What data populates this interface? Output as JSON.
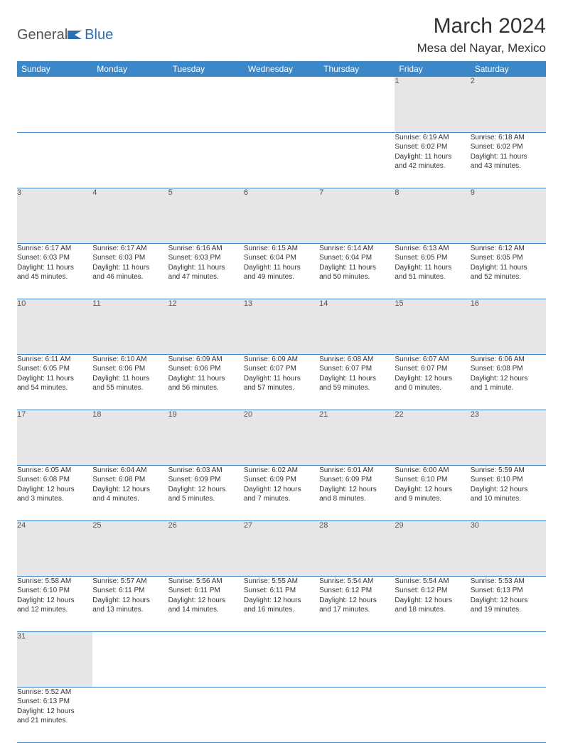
{
  "logo": {
    "text1": "General",
    "text2": "Blue"
  },
  "title": {
    "month": "March 2024",
    "location": "Mesa del Nayar, Mexico"
  },
  "colors": {
    "header_bg": "#3c87c7",
    "header_fg": "#ffffff",
    "daynum_bg": "#e6e6e6",
    "border": "#3c87c7",
    "logo_blue": "#2c6fb0"
  },
  "day_headers": [
    "Sunday",
    "Monday",
    "Tuesday",
    "Wednesday",
    "Thursday",
    "Friday",
    "Saturday"
  ],
  "weeks": [
    [
      {
        "num": "",
        "lines": []
      },
      {
        "num": "",
        "lines": []
      },
      {
        "num": "",
        "lines": []
      },
      {
        "num": "",
        "lines": []
      },
      {
        "num": "",
        "lines": []
      },
      {
        "num": "1",
        "lines": [
          "Sunrise: 6:19 AM",
          "Sunset: 6:02 PM",
          "Daylight: 11 hours",
          "and 42 minutes."
        ]
      },
      {
        "num": "2",
        "lines": [
          "Sunrise: 6:18 AM",
          "Sunset: 6:02 PM",
          "Daylight: 11 hours",
          "and 43 minutes."
        ]
      }
    ],
    [
      {
        "num": "3",
        "lines": [
          "Sunrise: 6:17 AM",
          "Sunset: 6:03 PM",
          "Daylight: 11 hours",
          "and 45 minutes."
        ]
      },
      {
        "num": "4",
        "lines": [
          "Sunrise: 6:17 AM",
          "Sunset: 6:03 PM",
          "Daylight: 11 hours",
          "and 46 minutes."
        ]
      },
      {
        "num": "5",
        "lines": [
          "Sunrise: 6:16 AM",
          "Sunset: 6:03 PM",
          "Daylight: 11 hours",
          "and 47 minutes."
        ]
      },
      {
        "num": "6",
        "lines": [
          "Sunrise: 6:15 AM",
          "Sunset: 6:04 PM",
          "Daylight: 11 hours",
          "and 49 minutes."
        ]
      },
      {
        "num": "7",
        "lines": [
          "Sunrise: 6:14 AM",
          "Sunset: 6:04 PM",
          "Daylight: 11 hours",
          "and 50 minutes."
        ]
      },
      {
        "num": "8",
        "lines": [
          "Sunrise: 6:13 AM",
          "Sunset: 6:05 PM",
          "Daylight: 11 hours",
          "and 51 minutes."
        ]
      },
      {
        "num": "9",
        "lines": [
          "Sunrise: 6:12 AM",
          "Sunset: 6:05 PM",
          "Daylight: 11 hours",
          "and 52 minutes."
        ]
      }
    ],
    [
      {
        "num": "10",
        "lines": [
          "Sunrise: 6:11 AM",
          "Sunset: 6:05 PM",
          "Daylight: 11 hours",
          "and 54 minutes."
        ]
      },
      {
        "num": "11",
        "lines": [
          "Sunrise: 6:10 AM",
          "Sunset: 6:06 PM",
          "Daylight: 11 hours",
          "and 55 minutes."
        ]
      },
      {
        "num": "12",
        "lines": [
          "Sunrise: 6:09 AM",
          "Sunset: 6:06 PM",
          "Daylight: 11 hours",
          "and 56 minutes."
        ]
      },
      {
        "num": "13",
        "lines": [
          "Sunrise: 6:09 AM",
          "Sunset: 6:07 PM",
          "Daylight: 11 hours",
          "and 57 minutes."
        ]
      },
      {
        "num": "14",
        "lines": [
          "Sunrise: 6:08 AM",
          "Sunset: 6:07 PM",
          "Daylight: 11 hours",
          "and 59 minutes."
        ]
      },
      {
        "num": "15",
        "lines": [
          "Sunrise: 6:07 AM",
          "Sunset: 6:07 PM",
          "Daylight: 12 hours",
          "and 0 minutes."
        ]
      },
      {
        "num": "16",
        "lines": [
          "Sunrise: 6:06 AM",
          "Sunset: 6:08 PM",
          "Daylight: 12 hours",
          "and 1 minute."
        ]
      }
    ],
    [
      {
        "num": "17",
        "lines": [
          "Sunrise: 6:05 AM",
          "Sunset: 6:08 PM",
          "Daylight: 12 hours",
          "and 3 minutes."
        ]
      },
      {
        "num": "18",
        "lines": [
          "Sunrise: 6:04 AM",
          "Sunset: 6:08 PM",
          "Daylight: 12 hours",
          "and 4 minutes."
        ]
      },
      {
        "num": "19",
        "lines": [
          "Sunrise: 6:03 AM",
          "Sunset: 6:09 PM",
          "Daylight: 12 hours",
          "and 5 minutes."
        ]
      },
      {
        "num": "20",
        "lines": [
          "Sunrise: 6:02 AM",
          "Sunset: 6:09 PM",
          "Daylight: 12 hours",
          "and 7 minutes."
        ]
      },
      {
        "num": "21",
        "lines": [
          "Sunrise: 6:01 AM",
          "Sunset: 6:09 PM",
          "Daylight: 12 hours",
          "and 8 minutes."
        ]
      },
      {
        "num": "22",
        "lines": [
          "Sunrise: 6:00 AM",
          "Sunset: 6:10 PM",
          "Daylight: 12 hours",
          "and 9 minutes."
        ]
      },
      {
        "num": "23",
        "lines": [
          "Sunrise: 5:59 AM",
          "Sunset: 6:10 PM",
          "Daylight: 12 hours",
          "and 10 minutes."
        ]
      }
    ],
    [
      {
        "num": "24",
        "lines": [
          "Sunrise: 5:58 AM",
          "Sunset: 6:10 PM",
          "Daylight: 12 hours",
          "and 12 minutes."
        ]
      },
      {
        "num": "25",
        "lines": [
          "Sunrise: 5:57 AM",
          "Sunset: 6:11 PM",
          "Daylight: 12 hours",
          "and 13 minutes."
        ]
      },
      {
        "num": "26",
        "lines": [
          "Sunrise: 5:56 AM",
          "Sunset: 6:11 PM",
          "Daylight: 12 hours",
          "and 14 minutes."
        ]
      },
      {
        "num": "27",
        "lines": [
          "Sunrise: 5:55 AM",
          "Sunset: 6:11 PM",
          "Daylight: 12 hours",
          "and 16 minutes."
        ]
      },
      {
        "num": "28",
        "lines": [
          "Sunrise: 5:54 AM",
          "Sunset: 6:12 PM",
          "Daylight: 12 hours",
          "and 17 minutes."
        ]
      },
      {
        "num": "29",
        "lines": [
          "Sunrise: 5:54 AM",
          "Sunset: 6:12 PM",
          "Daylight: 12 hours",
          "and 18 minutes."
        ]
      },
      {
        "num": "30",
        "lines": [
          "Sunrise: 5:53 AM",
          "Sunset: 6:13 PM",
          "Daylight: 12 hours",
          "and 19 minutes."
        ]
      }
    ],
    [
      {
        "num": "31",
        "lines": [
          "Sunrise: 5:52 AM",
          "Sunset: 6:13 PM",
          "Daylight: 12 hours",
          "and 21 minutes."
        ]
      },
      {
        "num": "",
        "lines": []
      },
      {
        "num": "",
        "lines": []
      },
      {
        "num": "",
        "lines": []
      },
      {
        "num": "",
        "lines": []
      },
      {
        "num": "",
        "lines": []
      },
      {
        "num": "",
        "lines": []
      }
    ]
  ]
}
